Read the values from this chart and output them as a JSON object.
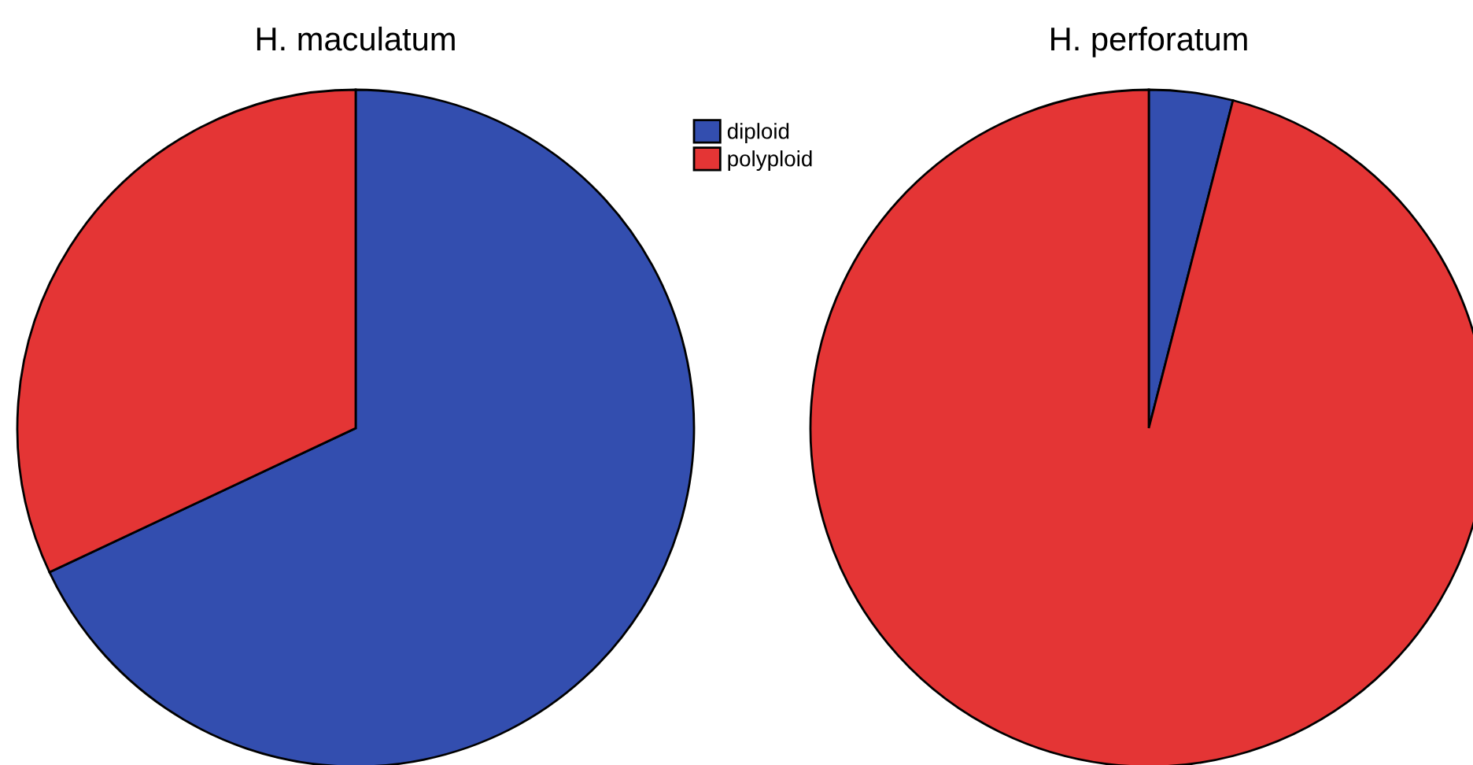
{
  "chart_data": [
    {
      "type": "pie",
      "title": "H. maculatum",
      "categories": [
        "diploid",
        "polyploid"
      ],
      "values": [
        68,
        32
      ],
      "colors": [
        "#334eaf",
        "#e43535"
      ],
      "legend": "right"
    },
    {
      "type": "pie",
      "title": "H. perforatum",
      "categories": [
        null,
        null
      ],
      "values": [
        4,
        96
      ],
      "colors": [
        "#334eaf",
        "#e43535"
      ]
    }
  ]
}
